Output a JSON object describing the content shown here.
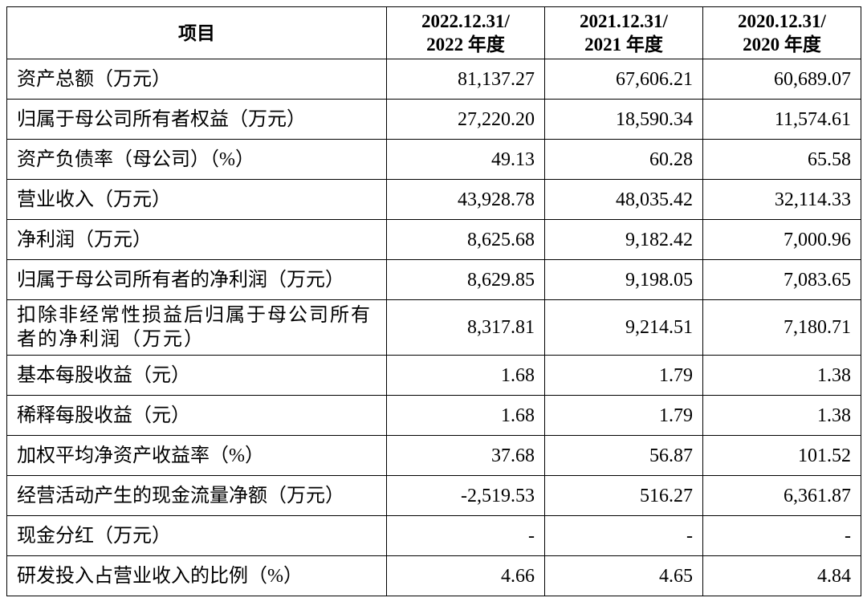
{
  "table": {
    "header": [
      "项目",
      [
        "2022.12.31/",
        "2022 年度"
      ],
      [
        "2021.12.31/",
        "2021 年度"
      ],
      [
        "2020.12.31/",
        "2020 年度"
      ]
    ],
    "rows": [
      [
        "资产总额（万元）",
        "81,137.27",
        "67,606.21",
        "60,689.07"
      ],
      [
        "归属于母公司所有者权益（万元）",
        "27,220.20",
        "18,590.34",
        "11,574.61"
      ],
      [
        "资产负债率（母公司）（%）",
        "49.13",
        "60.28",
        "65.58"
      ],
      [
        "营业收入（万元）",
        "43,928.78",
        "48,035.42",
        "32,114.33"
      ],
      [
        "净利润（万元）",
        "8,625.68",
        "9,182.42",
        "7,000.96"
      ],
      [
        "归属于母公司所有者的净利润（万元）",
        "8,629.85",
        "9,198.05",
        "7,083.65"
      ],
      [
        "扣除非经常性损益后归属于母公司所有者的净利润（万元）",
        "8,317.81",
        "9,214.51",
        "7,180.71"
      ],
      [
        "基本每股收益（元）",
        "1.68",
        "1.79",
        "1.38"
      ],
      [
        "稀释每股收益（元）",
        "1.68",
        "1.79",
        "1.38"
      ],
      [
        "加权平均净资产收益率（%）",
        "37.68",
        "56.87",
        "101.52"
      ],
      [
        "经营活动产生的现金流量净额（万元）",
        "-2,519.53",
        "516.27",
        "6,361.87"
      ],
      [
        "现金分红（万元）",
        "-",
        "-",
        "-"
      ],
      [
        "研发投入占营业收入的比例（%）",
        "4.66",
        "4.65",
        "4.84"
      ]
    ]
  }
}
